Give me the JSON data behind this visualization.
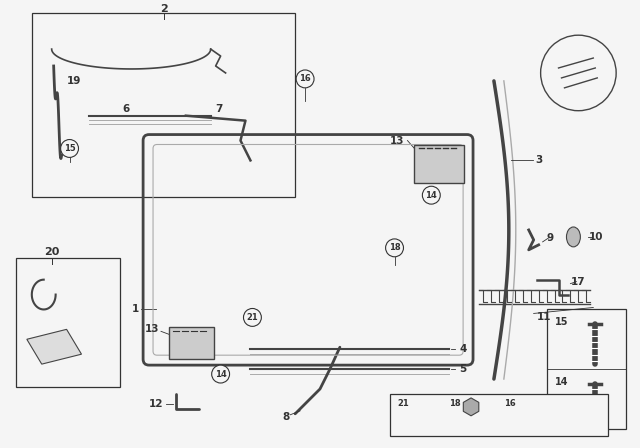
{
  "bg_color": "#f5f5f5",
  "fig_width": 6.4,
  "fig_height": 4.48,
  "dpi": 100,
  "line_color": "#444444",
  "label_color": "#222222",
  "light_gray": "#aaaaaa",
  "mid_gray": "#888888",
  "dark_gray": "#333333"
}
